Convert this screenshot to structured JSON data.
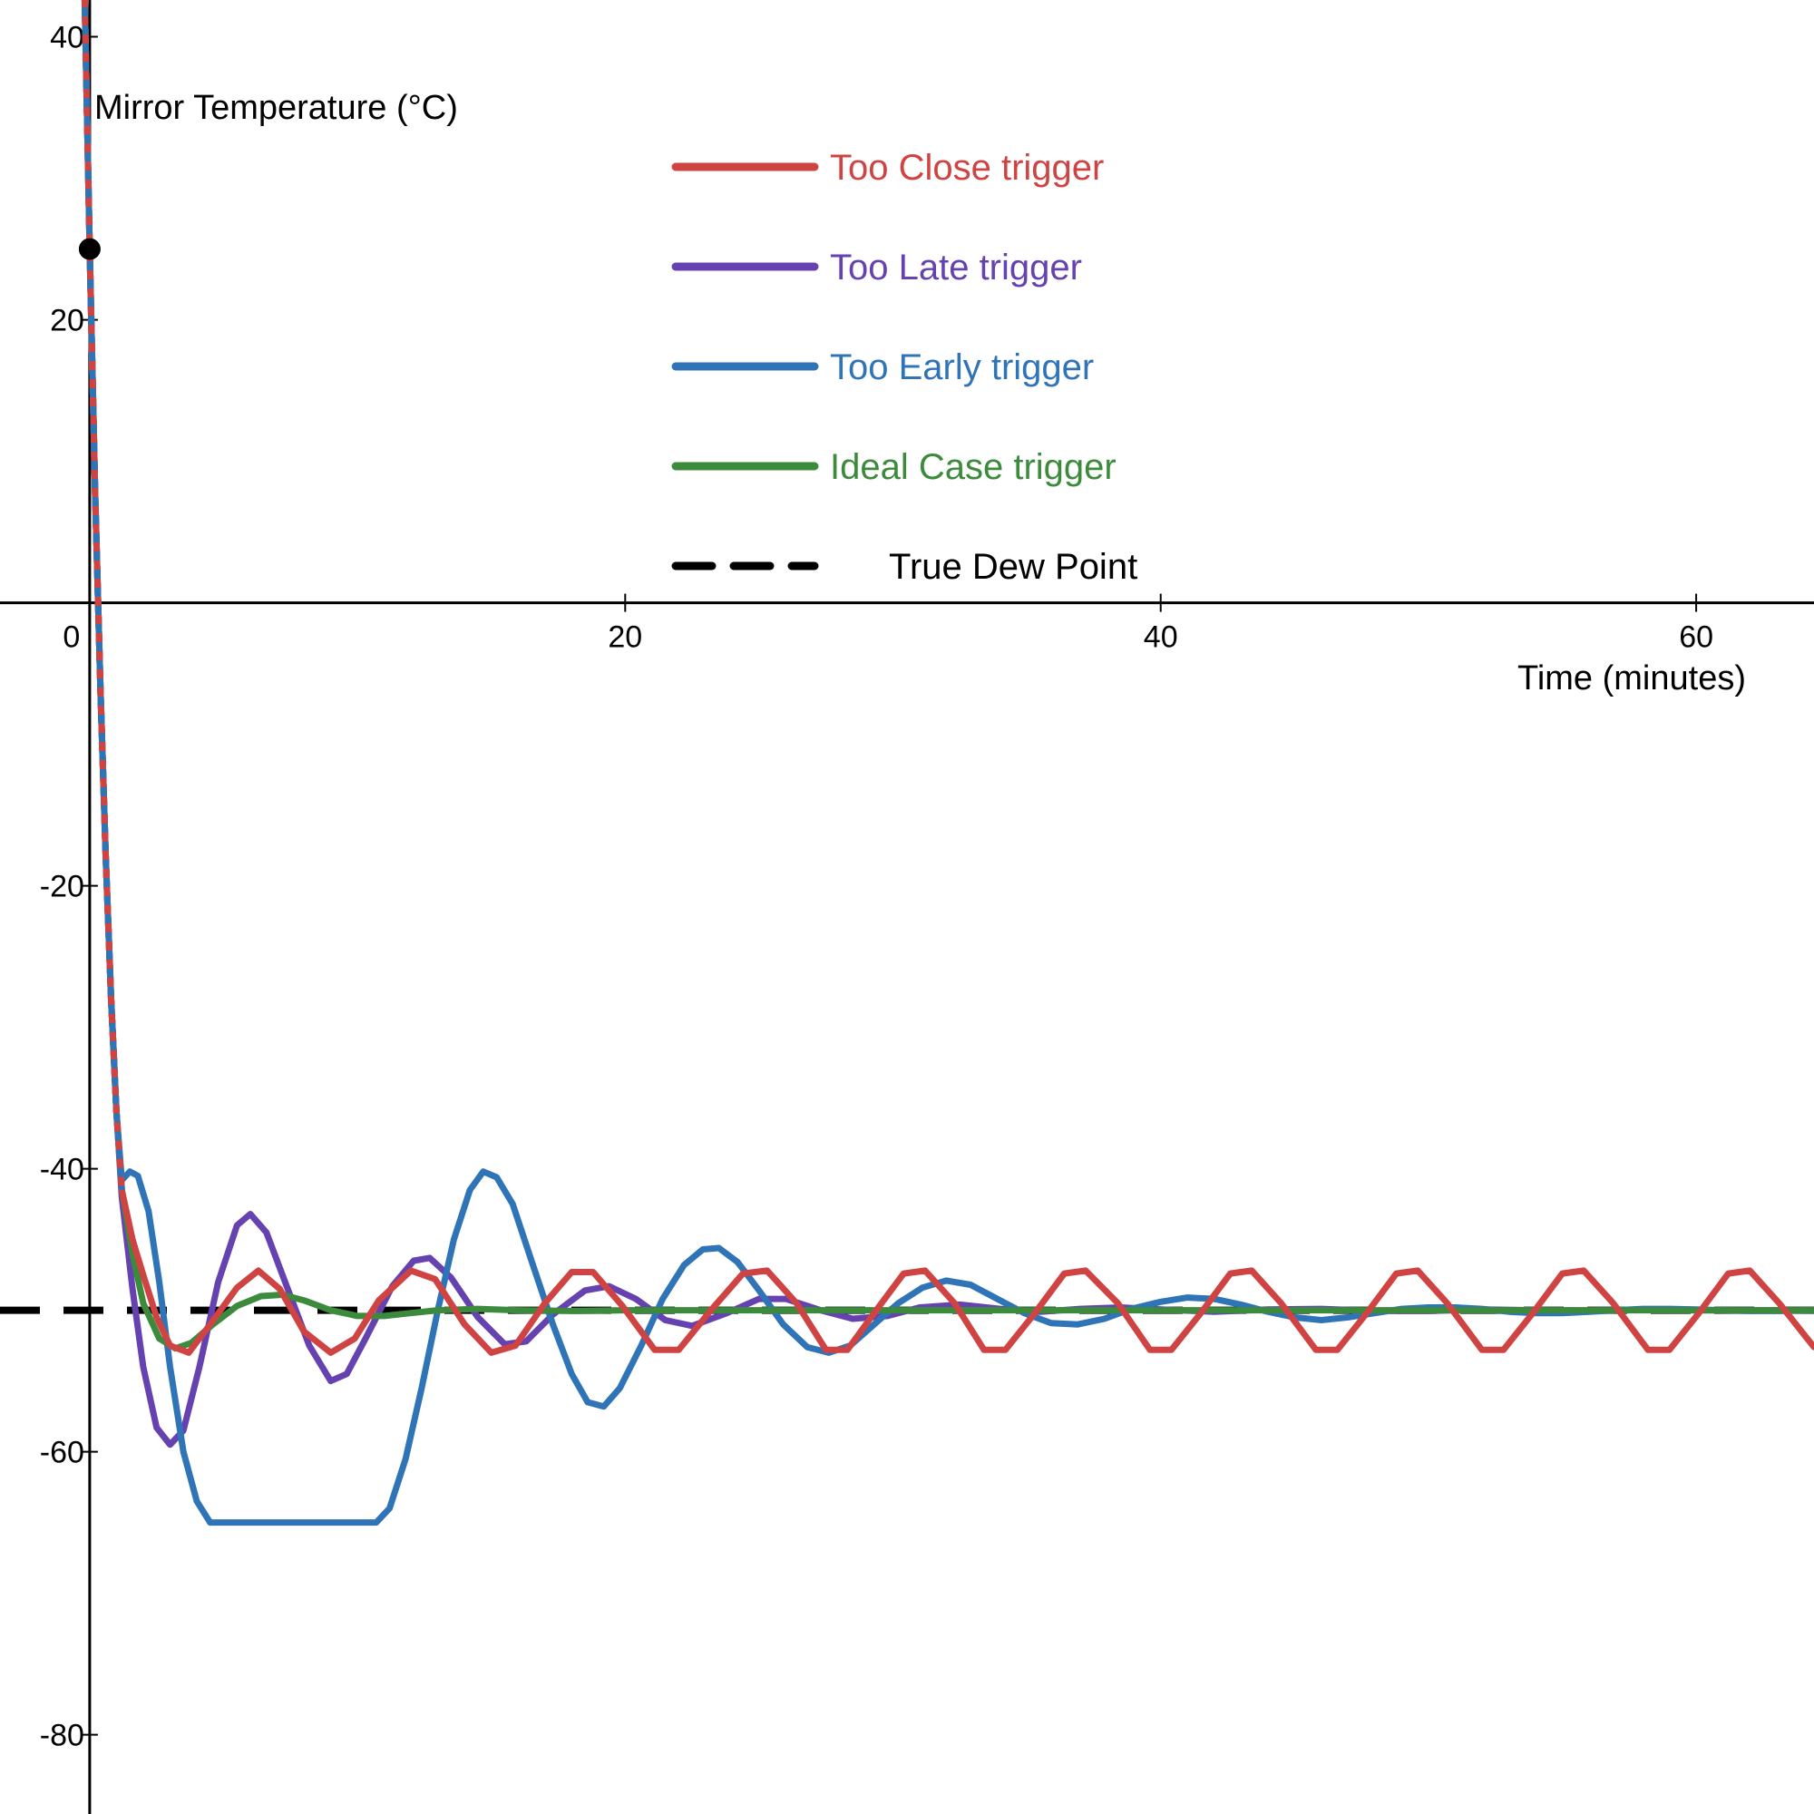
{
  "chart_data": {
    "type": "line",
    "title": "",
    "xlabel": "Time (minutes)",
    "ylabel": "Mirror Temperature (°C)",
    "xlim": [
      -3.35,
      64.4
    ],
    "ylim": [
      -85.6,
      42.6
    ],
    "grid": false,
    "legend_position": "top-center",
    "x_ticks": [
      {
        "value": 0,
        "label": "0"
      },
      {
        "value": 20,
        "label": "20"
      },
      {
        "value": 40,
        "label": "40"
      },
      {
        "value": 60,
        "label": "60"
      }
    ],
    "y_ticks": [
      {
        "value": 40,
        "label": "40"
      },
      {
        "value": 20,
        "label": "20"
      },
      {
        "value": -20,
        "label": "-20"
      },
      {
        "value": -40,
        "label": "-40"
      },
      {
        "value": -60,
        "label": "-60"
      },
      {
        "value": -80,
        "label": "-80"
      }
    ],
    "start_point": {
      "x": 0,
      "y": 25
    },
    "series": [
      {
        "name": "Too Close trigger",
        "color": "#d04343",
        "points": [
          [
            -0.2,
            44
          ],
          [
            0,
            25
          ],
          [
            0.2,
            8
          ],
          [
            0.4,
            -6
          ],
          [
            0.6,
            -18
          ],
          [
            0.8,
            -28
          ],
          [
            1.0,
            -36
          ],
          [
            1.2,
            -41.5
          ],
          [
            1.6,
            -45
          ],
          [
            2.0,
            -47.5
          ],
          [
            2.5,
            -50.5
          ],
          [
            3.0,
            -52.5
          ],
          [
            3.7,
            -53
          ],
          [
            4.5,
            -51
          ],
          [
            5.5,
            -48.4
          ],
          [
            6.3,
            -47.2
          ],
          [
            7.1,
            -48.5
          ],
          [
            8.0,
            -51.5
          ],
          [
            9.0,
            -53
          ],
          [
            9.9,
            -52
          ],
          [
            10.8,
            -49.3
          ],
          [
            12.0,
            -47.2
          ],
          [
            12.9,
            -47.8
          ],
          [
            14.0,
            -51
          ],
          [
            15.0,
            -53
          ],
          [
            15.9,
            -52.5
          ],
          [
            17.0,
            -49.5
          ],
          [
            18.0,
            -47.3
          ],
          [
            18.8,
            -47.3
          ],
          [
            19.9,
            -49.7
          ],
          [
            21.1,
            -52.8
          ],
          [
            22.0,
            -52.8
          ],
          [
            23.2,
            -50
          ],
          [
            24.4,
            -47.4
          ],
          [
            25.3,
            -47.2
          ],
          [
            26.4,
            -49.5
          ],
          [
            27.5,
            -52.8
          ],
          [
            28.3,
            -52.8
          ],
          [
            29.3,
            -50.2
          ],
          [
            30.4,
            -47.4
          ],
          [
            31.2,
            -47.2
          ],
          [
            32.3,
            -49.5
          ],
          [
            33.4,
            -52.8
          ],
          [
            34.2,
            -52.8
          ],
          [
            35.3,
            -50.2
          ],
          [
            36.4,
            -47.4
          ],
          [
            37.2,
            -47.2
          ],
          [
            38.4,
            -49.5
          ],
          [
            39.6,
            -52.8
          ],
          [
            40.4,
            -52.8
          ],
          [
            41.5,
            -50.2
          ],
          [
            42.6,
            -47.4
          ],
          [
            43.4,
            -47.2
          ],
          [
            44.5,
            -49.5
          ],
          [
            45.8,
            -52.8
          ],
          [
            46.6,
            -52.8
          ],
          [
            47.7,
            -50.2
          ],
          [
            48.8,
            -47.4
          ],
          [
            49.6,
            -47.2
          ],
          [
            50.7,
            -49.5
          ],
          [
            52.0,
            -52.8
          ],
          [
            52.8,
            -52.8
          ],
          [
            53.9,
            -50.2
          ],
          [
            55.0,
            -47.4
          ],
          [
            55.8,
            -47.2
          ],
          [
            56.9,
            -49.5
          ],
          [
            58.2,
            -52.8
          ],
          [
            59.0,
            -52.8
          ],
          [
            60.1,
            -50.2
          ],
          [
            61.2,
            -47.4
          ],
          [
            62.0,
            -47.2
          ],
          [
            63.1,
            -49.5
          ],
          [
            64.4,
            -52.6
          ]
        ]
      },
      {
        "name": "Too Late trigger",
        "color": "#6542b0",
        "points": [
          [
            -0.2,
            44
          ],
          [
            0,
            25
          ],
          [
            0.2,
            8
          ],
          [
            0.4,
            -6
          ],
          [
            0.6,
            -18
          ],
          [
            0.8,
            -28
          ],
          [
            1.0,
            -36
          ],
          [
            1.2,
            -42
          ],
          [
            1.6,
            -48.5
          ],
          [
            2.0,
            -54
          ],
          [
            2.5,
            -58.3
          ],
          [
            3.0,
            -59.5
          ],
          [
            3.5,
            -58.5
          ],
          [
            4.1,
            -54
          ],
          [
            4.8,
            -48
          ],
          [
            5.5,
            -44
          ],
          [
            6.0,
            -43.2
          ],
          [
            6.6,
            -44.5
          ],
          [
            7.4,
            -48.5
          ],
          [
            8.2,
            -52.5
          ],
          [
            9.0,
            -55
          ],
          [
            9.6,
            -54.5
          ],
          [
            10.3,
            -52
          ],
          [
            11.3,
            -48.3
          ],
          [
            12.1,
            -46.5
          ],
          [
            12.7,
            -46.3
          ],
          [
            13.5,
            -47.7
          ],
          [
            14.5,
            -50.5
          ],
          [
            15.5,
            -52.4
          ],
          [
            16.3,
            -52.2
          ],
          [
            17.3,
            -50.3
          ],
          [
            18.5,
            -48.6
          ],
          [
            19.4,
            -48.3
          ],
          [
            20.4,
            -49.2
          ],
          [
            21.5,
            -50.7
          ],
          [
            22.5,
            -51.1
          ],
          [
            23.8,
            -50.2
          ],
          [
            25.0,
            -49.2
          ],
          [
            26.0,
            -49.2
          ],
          [
            27.3,
            -50
          ],
          [
            28.5,
            -50.6
          ],
          [
            29.8,
            -50.4
          ],
          [
            31.0,
            -49.8
          ],
          [
            32.5,
            -49.6
          ],
          [
            34.0,
            -49.9
          ],
          [
            35.5,
            -50.1
          ],
          [
            37.0,
            -49.9
          ],
          [
            38.5,
            -49.8
          ],
          [
            40.0,
            -49.95
          ],
          [
            42.0,
            -50.1
          ],
          [
            44.0,
            -49.95
          ],
          [
            46.0,
            -49.9
          ],
          [
            48.0,
            -50.05
          ],
          [
            50.0,
            -50.05
          ],
          [
            52.0,
            -49.95
          ],
          [
            54.0,
            -50
          ],
          [
            56.0,
            -50.02
          ],
          [
            58.0,
            -49.98
          ],
          [
            60.0,
            -50
          ],
          [
            62.0,
            -50.01
          ],
          [
            64.4,
            -50
          ]
        ]
      },
      {
        "name": "Too Early trigger",
        "color": "#3074b8",
        "points": [
          [
            -0.2,
            44
          ],
          [
            0,
            25
          ],
          [
            0.2,
            8
          ],
          [
            0.4,
            -6
          ],
          [
            0.6,
            -18
          ],
          [
            0.8,
            -28
          ],
          [
            1.0,
            -36
          ],
          [
            1.2,
            -40.8
          ],
          [
            1.5,
            -40.2
          ],
          [
            1.8,
            -40.5
          ],
          [
            2.2,
            -43
          ],
          [
            2.6,
            -48
          ],
          [
            3.0,
            -54
          ],
          [
            3.5,
            -60
          ],
          [
            4.0,
            -63.5
          ],
          [
            4.5,
            -65
          ],
          [
            5.0,
            -65
          ],
          [
            7.0,
            -65
          ],
          [
            9.0,
            -65
          ],
          [
            10.7,
            -65
          ],
          [
            11.2,
            -64
          ],
          [
            11.8,
            -60.5
          ],
          [
            12.4,
            -55.5
          ],
          [
            13.0,
            -50
          ],
          [
            13.6,
            -45
          ],
          [
            14.2,
            -41.5
          ],
          [
            14.7,
            -40.2
          ],
          [
            15.2,
            -40.6
          ],
          [
            15.8,
            -42.5
          ],
          [
            16.5,
            -46.5
          ],
          [
            17.3,
            -51
          ],
          [
            18.0,
            -54.5
          ],
          [
            18.6,
            -56.5
          ],
          [
            19.2,
            -56.8
          ],
          [
            19.8,
            -55.5
          ],
          [
            20.6,
            -52.5
          ],
          [
            21.4,
            -49.2
          ],
          [
            22.2,
            -46.8
          ],
          [
            22.9,
            -45.7
          ],
          [
            23.5,
            -45.6
          ],
          [
            24.2,
            -46.6
          ],
          [
            25.0,
            -48.6
          ],
          [
            25.9,
            -51
          ],
          [
            26.8,
            -52.6
          ],
          [
            27.6,
            -53
          ],
          [
            28.4,
            -52.5
          ],
          [
            29.3,
            -51
          ],
          [
            30.2,
            -49.5
          ],
          [
            31.1,
            -48.4
          ],
          [
            32.0,
            -47.9
          ],
          [
            32.9,
            -48.2
          ],
          [
            33.9,
            -49.2
          ],
          [
            34.9,
            -50.2
          ],
          [
            35.9,
            -50.9
          ],
          [
            36.9,
            -51
          ],
          [
            37.9,
            -50.6
          ],
          [
            38.9,
            -49.9
          ],
          [
            40.0,
            -49.4
          ],
          [
            41.0,
            -49.1
          ],
          [
            42.0,
            -49.2
          ],
          [
            43.0,
            -49.6
          ],
          [
            44.0,
            -50.1
          ],
          [
            45.0,
            -50.5
          ],
          [
            46.0,
            -50.7
          ],
          [
            47.0,
            -50.5
          ],
          [
            48.0,
            -50.2
          ],
          [
            49.0,
            -49.9
          ],
          [
            50.0,
            -49.8
          ],
          [
            51.0,
            -49.8
          ],
          [
            52.0,
            -49.9
          ],
          [
            53.0,
            -50.1
          ],
          [
            54.0,
            -50.2
          ],
          [
            55.0,
            -50.2
          ],
          [
            56.0,
            -50.1
          ],
          [
            57.0,
            -50
          ],
          [
            58.0,
            -49.9
          ],
          [
            59.0,
            -49.9
          ],
          [
            60.0,
            -49.95
          ],
          [
            61.0,
            -50
          ],
          [
            62.0,
            -50.05
          ],
          [
            63.0,
            -50.05
          ],
          [
            64.4,
            -50
          ]
        ]
      },
      {
        "name": "Ideal Case trigger",
        "color": "#3c8a3c",
        "points": [
          [
            -0.2,
            44
          ],
          [
            0,
            25
          ],
          [
            0.2,
            8
          ],
          [
            0.4,
            -6
          ],
          [
            0.6,
            -18
          ],
          [
            0.8,
            -28
          ],
          [
            1.0,
            -36
          ],
          [
            1.2,
            -41.5
          ],
          [
            1.6,
            -46
          ],
          [
            2.0,
            -49.5
          ],
          [
            2.6,
            -52
          ],
          [
            3.2,
            -52.7
          ],
          [
            3.8,
            -52.3
          ],
          [
            4.6,
            -51
          ],
          [
            5.5,
            -49.7
          ],
          [
            6.4,
            -49
          ],
          [
            7.2,
            -48.9
          ],
          [
            8.0,
            -49.3
          ],
          [
            9.0,
            -50
          ],
          [
            10.0,
            -50.4
          ],
          [
            11.0,
            -50.4
          ],
          [
            12.0,
            -50.2
          ],
          [
            13.0,
            -50
          ],
          [
            14.5,
            -49.9
          ],
          [
            16.0,
            -50
          ],
          [
            18.0,
            -50.05
          ],
          [
            20.0,
            -50
          ],
          [
            25.0,
            -50
          ],
          [
            30.0,
            -50
          ],
          [
            40.0,
            -50
          ],
          [
            50.0,
            -50
          ],
          [
            64.4,
            -50
          ]
        ]
      },
      {
        "name": "True Dew Point",
        "color": "#000000",
        "dashed": true,
        "points": [
          [
            -3.35,
            -50
          ],
          [
            64.4,
            -50
          ]
        ]
      }
    ]
  }
}
